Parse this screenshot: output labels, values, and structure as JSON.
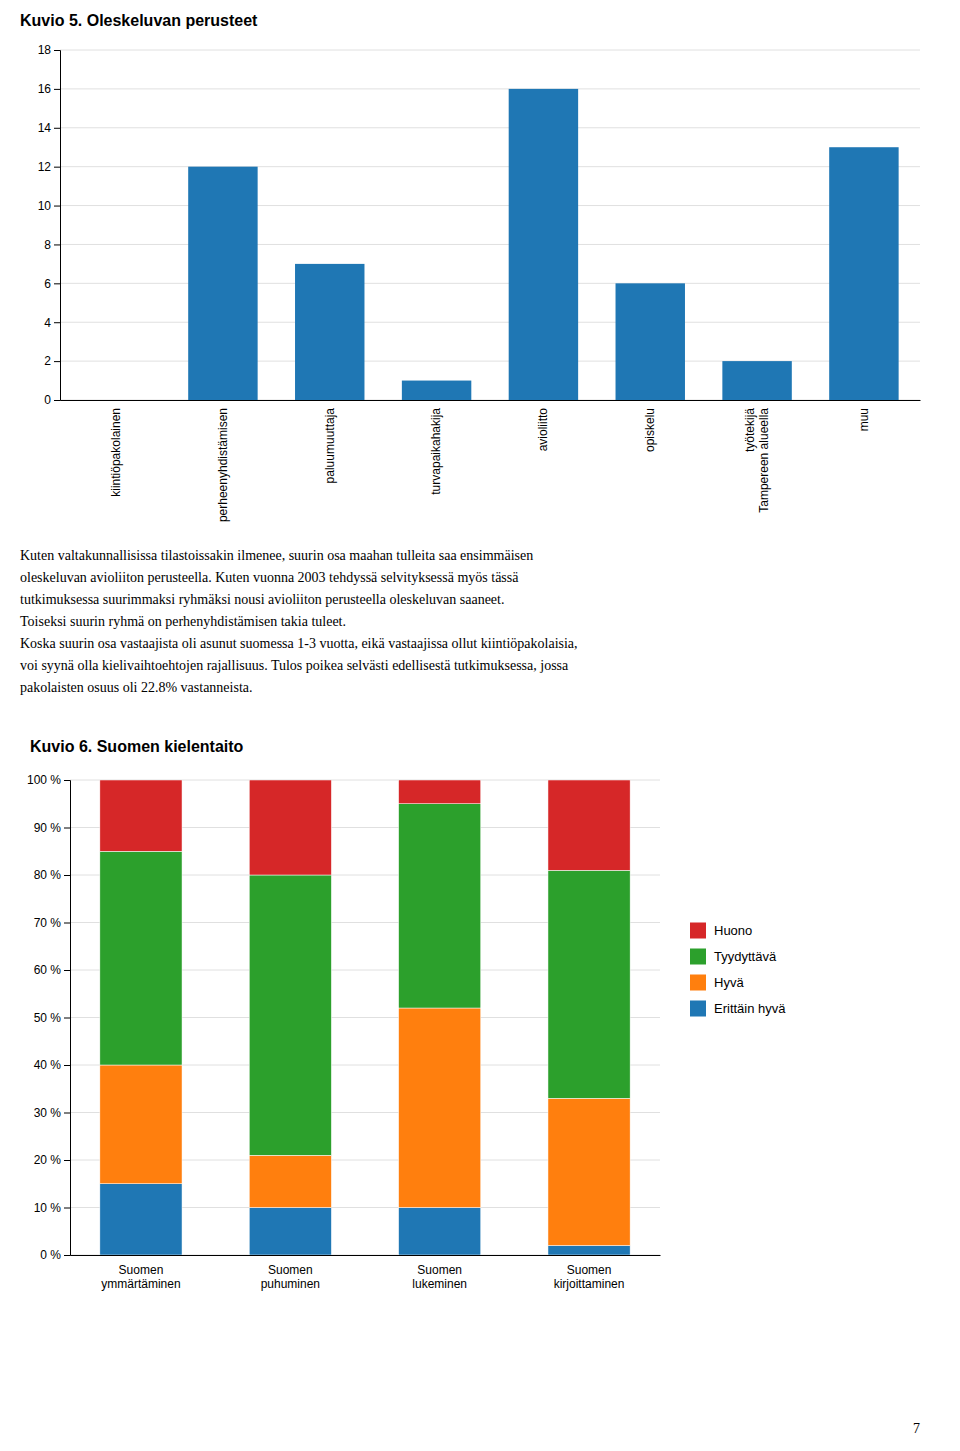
{
  "chart_data": [
    {
      "type": "bar",
      "title": "Kuvio 5. Oleskeluvan perusteet",
      "categories": [
        "kiintiöpakolainen",
        "perheenyhdistämisen",
        "paluumuuttaja",
        "turvapaikahakija",
        "avioliitto",
        "opiskelu",
        "työtekijä\nTampereen alueella",
        "muu"
      ],
      "values": [
        0,
        12,
        7,
        1,
        16,
        6,
        2,
        13
      ],
      "ylim": [
        0,
        18
      ],
      "yticks": [
        0,
        2,
        4,
        6,
        8,
        10,
        12,
        14,
        16,
        18
      ],
      "grid": true
    },
    {
      "type": "bar",
      "stacked": true,
      "title": "Kuvio 6. Suomen kielentaito",
      "categories": [
        "Suomen\nymmärtäminen",
        "Suomen\npuhuminen",
        "Suomen\nlukeminen",
        "Suomen\nkirjoittaminen"
      ],
      "series": [
        {
          "name": "Erittäin hyvä",
          "values": [
            15,
            10,
            10,
            2
          ]
        },
        {
          "name": "Hyvä",
          "values": [
            25,
            11,
            42,
            31
          ]
        },
        {
          "name": "Tyydyttävä",
          "values": [
            45,
            59,
            43,
            48
          ]
        },
        {
          "name": "Huono",
          "values": [
            15,
            20,
            5,
            19
          ]
        }
      ],
      "ylim": [
        0,
        100
      ],
      "yticks": [
        {
          "value": 0,
          "label": "0 %"
        },
        {
          "value": 10,
          "label": "10 %"
        },
        {
          "value": 20,
          "label": "20 %"
        },
        {
          "value": 30,
          "label": "30 %"
        },
        {
          "value": 40,
          "label": "40 %"
        },
        {
          "value": 50,
          "label": "50 %"
        },
        {
          "value": 60,
          "label": "60 %"
        },
        {
          "value": 70,
          "label": "70 %"
        },
        {
          "value": 80,
          "label": "80 %"
        },
        {
          "value": 90,
          "label": "90 %"
        },
        {
          "value": 100,
          "label": "100 %"
        }
      ],
      "grid": true,
      "legend": "right"
    }
  ],
  "text_lines": [
    "Kuten valtakunnallisissa tilastoissakin ilmenee, suurin osa maahan tulleita saa ensimmäisen",
    "oleskeluvan avioliiton perusteella. Kuten vuonna 2003 tehdyssä selvityksessä myös tässä",
    "tutkimuksessa suurimmaksi ryhmäksi nousi avioliiton perusteella oleskeluvan saaneet.",
    "Toiseksi suurin ryhmä on perhenyhdistämisen takia tuleet.",
    "Koska suurin osa vastaajista oli asunut suomessa 1-3 vuotta, eikä vastaajissa ollut kiintiöpakolaisia,",
    "voi syynä olla kielivaihtoehtojen rajallisuus. Tulos poikea selvästi edellisestä tutkimuksessa, jossa",
    "pakolaisten osuus oli 22.8% vastanneista."
  ],
  "page_number": "7"
}
